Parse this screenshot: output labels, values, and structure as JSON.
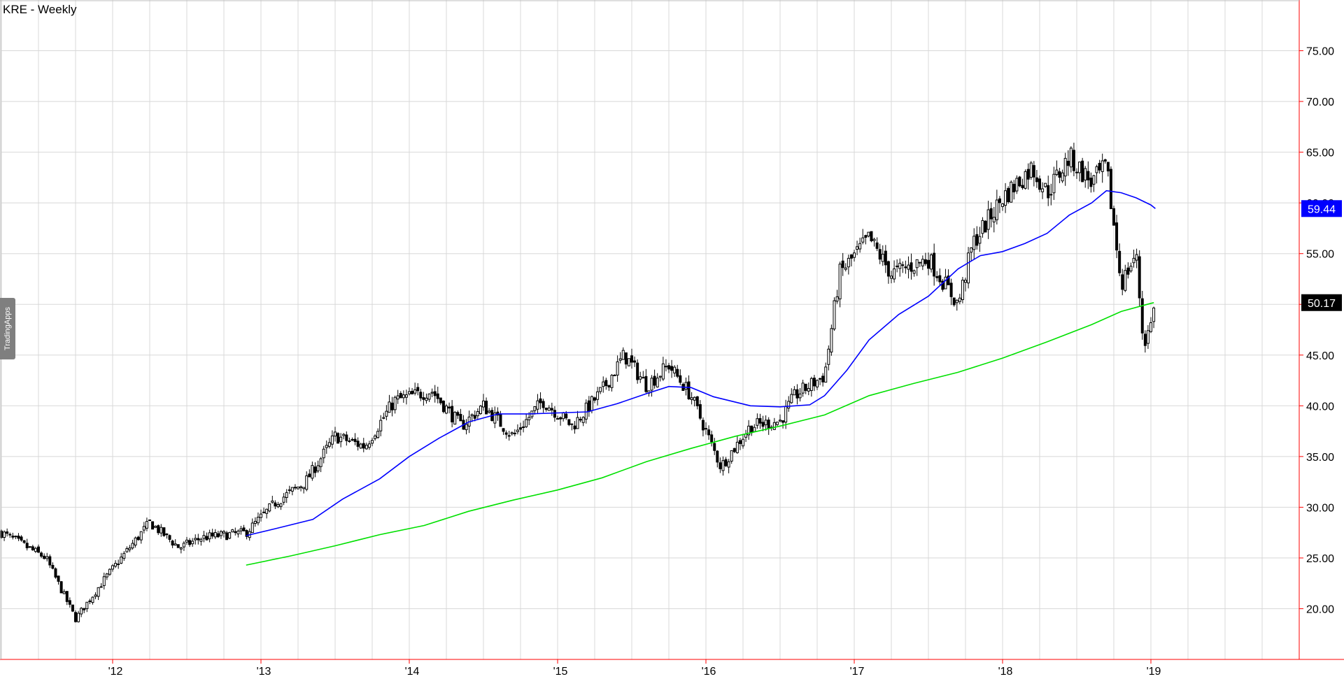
{
  "chart_data": {
    "type": "candlestick",
    "title": "KRE - Weekly",
    "watermark": "TradingApps",
    "x_range": [
      2011.25,
      2020.0
    ],
    "ylim": [
      15.0,
      80.0
    ],
    "y_ticks": [
      20,
      25,
      30,
      35,
      40,
      45,
      50,
      55,
      60,
      65,
      70,
      75
    ],
    "y_tick_labels": [
      "20.00",
      "25.00",
      "30.00",
      "35.00",
      "40.00",
      "45.00",
      "50.00",
      "55.00",
      "60.00",
      "65.00",
      "70.00",
      "75.00"
    ],
    "x_ticks": [
      2012,
      2013,
      2014,
      2015,
      2016,
      2017,
      2018,
      2019
    ],
    "x_tick_labels": [
      "'12",
      "'13",
      "'14",
      "'15",
      "'16",
      "'17",
      "'18",
      "'19"
    ],
    "grid": true,
    "colors": {
      "price": "#000000",
      "ma_blue": "#0000ff",
      "ma_green": "#00e000",
      "axis_frame": "#ff0000",
      "grid": "#d8d8d8"
    },
    "price_anchors": {
      "x": [
        2011.25,
        2011.55,
        2011.75,
        2011.95,
        2012.25,
        2012.45,
        2012.6,
        2012.9,
        2013.1,
        2013.3,
        2013.5,
        2013.7,
        2013.9,
        2014.15,
        2014.35,
        2014.5,
        2014.7,
        2014.9,
        2015.1,
        2015.3,
        2015.45,
        2015.6,
        2015.75,
        2015.9,
        2016.1,
        2016.3,
        2016.5,
        2016.6,
        2016.8,
        2016.9,
        2017.1,
        2017.25,
        2017.5,
        2017.7,
        2017.8,
        2018.0,
        2018.2,
        2018.3,
        2018.45,
        2018.6,
        2018.7,
        2018.8,
        2018.9,
        2018.95,
        2019.0,
        2019.02
      ],
      "close": [
        27.5,
        25.0,
        19.0,
        23.0,
        28.5,
        26.0,
        27.0,
        27.5,
        30.5,
        32.5,
        37.0,
        36.0,
        40.5,
        41.5,
        38.0,
        40.0,
        37.0,
        40.5,
        38.0,
        41.5,
        45.0,
        42.0,
        44.0,
        41.0,
        34.0,
        38.0,
        38.5,
        41.0,
        43.0,
        53.0,
        56.5,
        53.0,
        54.5,
        50.0,
        56.0,
        60.5,
        63.5,
        61.0,
        64.5,
        62.0,
        63.5,
        52.0,
        55.0,
        46.0,
        48.0,
        50.17
      ]
    },
    "series": [
      {
        "name": "",
        "color": "#0000ff",
        "last_value": 59.44,
        "last_label": "59.44",
        "x": [
          2012.9,
          2013.1,
          2013.35,
          2013.55,
          2013.8,
          2014.0,
          2014.2,
          2014.4,
          2014.6,
          2014.8,
          2015.0,
          2015.2,
          2015.4,
          2015.6,
          2015.75,
          2015.9,
          2016.05,
          2016.3,
          2016.5,
          2016.7,
          2016.8,
          2016.95,
          2017.1,
          2017.3,
          2017.5,
          2017.7,
          2017.85,
          2018.0,
          2018.15,
          2018.3,
          2018.45,
          2018.6,
          2018.7,
          2018.8,
          2018.9,
          2019.0,
          2019.03
        ],
        "values": [
          27.2,
          27.9,
          28.8,
          30.8,
          32.8,
          35.0,
          36.8,
          38.4,
          39.2,
          39.2,
          39.3,
          39.4,
          40.2,
          41.2,
          41.9,
          41.8,
          40.9,
          40.0,
          39.9,
          40.1,
          41.0,
          43.5,
          46.5,
          49.0,
          50.8,
          53.5,
          54.8,
          55.2,
          56.0,
          57.0,
          58.8,
          60.0,
          61.2,
          61.0,
          60.5,
          59.8,
          59.44
        ]
      },
      {
        "name": "",
        "color": "#00e000",
        "last_value": 50.17,
        "last_label": "50.17",
        "x": [
          2012.9,
          2013.2,
          2013.5,
          2013.8,
          2014.1,
          2014.4,
          2014.7,
          2015.0,
          2015.3,
          2015.6,
          2015.9,
          2016.2,
          2016.5,
          2016.8,
          2017.1,
          2017.4,
          2017.7,
          2018.0,
          2018.3,
          2018.6,
          2018.8,
          2019.0,
          2019.02
        ],
        "values": [
          24.3,
          25.2,
          26.2,
          27.3,
          28.2,
          29.6,
          30.7,
          31.7,
          32.9,
          34.5,
          35.8,
          37.0,
          38.0,
          39.1,
          41.0,
          42.2,
          43.3,
          44.7,
          46.3,
          48.0,
          49.3,
          50.1,
          50.17
        ]
      }
    ]
  }
}
